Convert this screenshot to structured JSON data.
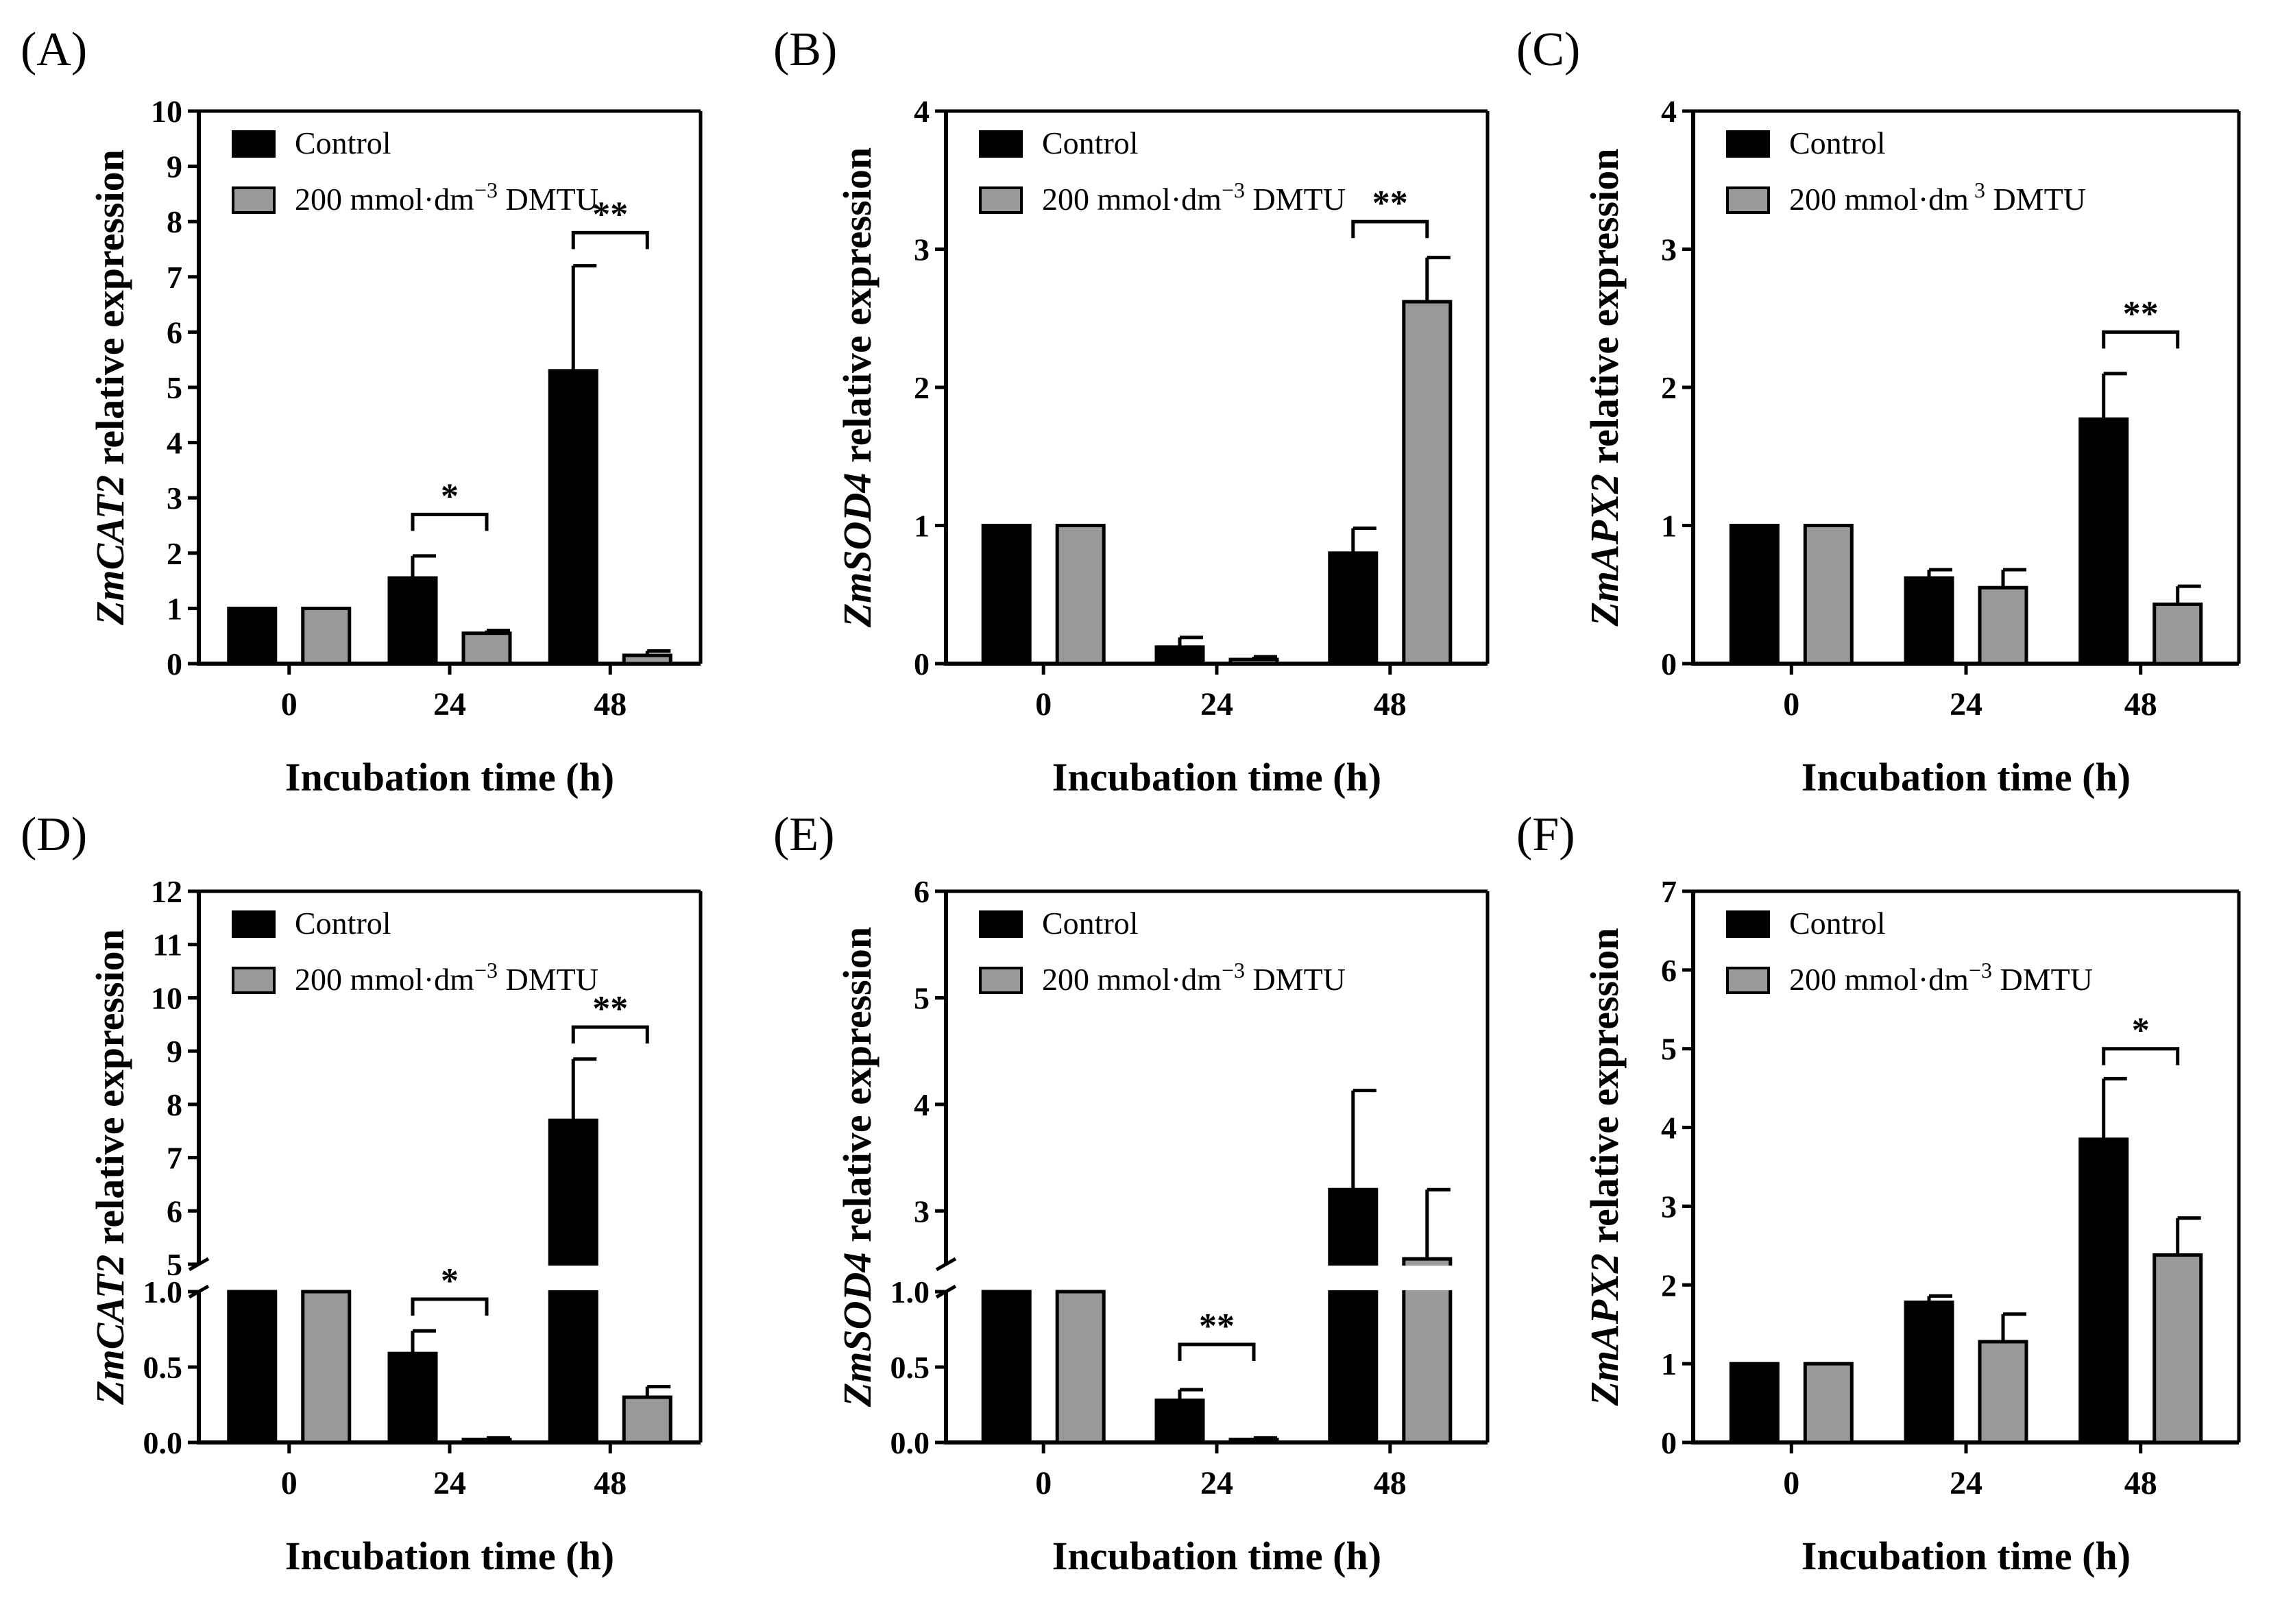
{
  "colors": {
    "control": "#000000",
    "dmtu": "#999999",
    "axis": "#000000"
  },
  "chart_data": [
    {
      "id": "A",
      "panel_label": "(A)",
      "type": "bar",
      "categories": [
        "0",
        "24",
        "48"
      ],
      "xlabel": "Incubation time (h)",
      "ylabel_gene": "ZmCAT2",
      "ylabel_rest": " relative expression",
      "legend": [
        "Control",
        "200 mmol·dm",
        "−3",
        " DMTU"
      ],
      "ylim": [
        0,
        10
      ],
      "yticks": [
        0,
        1,
        2,
        3,
        4,
        5,
        6,
        7,
        8,
        9,
        10
      ],
      "series": [
        {
          "name": "Control",
          "values": [
            1.0,
            1.55,
            5.3
          ],
          "errors": [
            0,
            0.4,
            1.9
          ]
        },
        {
          "name": "200 mmol·dm−3 DMTU",
          "values": [
            1.0,
            0.55,
            0.15
          ],
          "errors": [
            0,
            0.05,
            0.08
          ]
        }
      ],
      "significance": [
        {
          "category": 1,
          "label": "*",
          "y": 2.7
        },
        {
          "category": 2,
          "label": "**",
          "y": 7.8
        }
      ]
    },
    {
      "id": "B",
      "panel_label": "(B)",
      "type": "bar",
      "categories": [
        "0",
        "24",
        "48"
      ],
      "xlabel": "Incubation time (h)",
      "ylabel_gene": "ZmSOD4",
      "ylabel_rest": " relative expression",
      "legend": [
        "Control",
        "200 mmol·dm",
        "−3",
        " DMTU"
      ],
      "ylim": [
        0,
        4
      ],
      "yticks": [
        0,
        1,
        2,
        3,
        4
      ],
      "series": [
        {
          "name": "Control",
          "values": [
            1.0,
            0.12,
            0.8
          ],
          "errors": [
            0,
            0.07,
            0.18
          ]
        },
        {
          "name": "200 mmol·dm−3 DMTU",
          "values": [
            1.0,
            0.03,
            2.62
          ],
          "errors": [
            0,
            0.02,
            0.32
          ]
        }
      ],
      "significance": [
        {
          "category": 2,
          "label": "**",
          "y": 3.2
        }
      ]
    },
    {
      "id": "C",
      "panel_label": "(C)",
      "type": "bar",
      "categories": [
        "0",
        "24",
        "48"
      ],
      "xlabel": "Incubation time (h)",
      "ylabel_gene": "ZmAPX2",
      "ylabel_rest": " relative expression",
      "legend": [
        "Control",
        "200 mmol·dm",
        " 3",
        " DMTU"
      ],
      "ylim": [
        0,
        4
      ],
      "yticks": [
        0,
        1,
        2,
        3,
        4
      ],
      "series": [
        {
          "name": "Control",
          "values": [
            1.0,
            0.62,
            1.77
          ],
          "errors": [
            0,
            0.06,
            0.33
          ]
        },
        {
          "name": "200 mmol·dm 3 DMTU",
          "values": [
            1.0,
            0.55,
            0.43
          ],
          "errors": [
            0,
            0.13,
            0.13
          ]
        }
      ],
      "significance": [
        {
          "category": 2,
          "label": "**",
          "y": 2.4
        }
      ]
    },
    {
      "id": "D",
      "panel_label": "(D)",
      "type": "bar",
      "categories": [
        "0",
        "24",
        "48"
      ],
      "xlabel": "Incubation time (h)",
      "ylabel_gene": "ZmCAT2",
      "ylabel_rest": " relative expression",
      "legend": [
        "Control",
        "200 mmol·dm",
        "−3",
        " DMTU"
      ],
      "broken_axis": {
        "lower": [
          0,
          1.0
        ],
        "upper": [
          5,
          12
        ],
        "lower_ticks": [
          "0.0",
          "0.5",
          "1.0"
        ],
        "upper_ticks": [
          "5",
          "6",
          "7",
          "8",
          "9",
          "10",
          "11",
          "12"
        ]
      },
      "series": [
        {
          "name": "Control",
          "values": [
            1.0,
            0.59,
            7.7
          ],
          "errors": [
            0,
            0.15,
            1.15
          ]
        },
        {
          "name": "200 mmol·dm−3 DMTU",
          "values": [
            1.0,
            0.02,
            0.3
          ],
          "errors": [
            0,
            0.01,
            0.07
          ]
        }
      ],
      "significance": [
        {
          "category": 1,
          "label": "*",
          "y": 0.95
        },
        {
          "category": 2,
          "label": "**",
          "y": 9.45
        }
      ]
    },
    {
      "id": "E",
      "panel_label": "(E)",
      "type": "bar",
      "categories": [
        "0",
        "24",
        "48"
      ],
      "xlabel": "Incubation time (h)",
      "ylabel_gene": "ZmSOD4",
      "ylabel_rest": " relative expression",
      "legend": [
        "Control",
        "200 mmol·dm",
        "−3",
        " DMTU"
      ],
      "broken_axis": {
        "lower": [
          0,
          1.0
        ],
        "upper": [
          2.5,
          6
        ],
        "lower_ticks": [
          "0.0",
          "0.5",
          "1.0"
        ],
        "upper_ticks": [
          "3",
          "4",
          "5",
          "6"
        ]
      },
      "series": [
        {
          "name": "Control",
          "values": [
            1.0,
            0.28,
            3.2
          ],
          "errors": [
            0,
            0.07,
            0.93
          ]
        },
        {
          "name": "200 mmol·dm−3 DMTU",
          "values": [
            1.0,
            0.02,
            2.55
          ],
          "errors": [
            0,
            0.01,
            0.65
          ]
        }
      ],
      "significance": [
        {
          "category": 1,
          "label": "**",
          "y": 0.65
        }
      ]
    },
    {
      "id": "F",
      "panel_label": "(F)",
      "type": "bar",
      "categories": [
        "0",
        "24",
        "48"
      ],
      "xlabel": "Incubation time (h)",
      "ylabel_gene": "ZmAPX2",
      "ylabel_rest": " relative expression",
      "legend": [
        "Control",
        "200 mmol·dm",
        "−3",
        " DMTU"
      ],
      "ylim": [
        0,
        7
      ],
      "yticks": [
        0,
        1,
        2,
        3,
        4,
        5,
        6,
        7
      ],
      "series": [
        {
          "name": "Control",
          "values": [
            1.0,
            1.78,
            3.85
          ],
          "errors": [
            0,
            0.08,
            0.77
          ]
        },
        {
          "name": "200 mmol·dm−3 DMTU",
          "values": [
            1.0,
            1.28,
            2.38
          ],
          "errors": [
            0,
            0.35,
            0.47
          ]
        }
      ],
      "significance": [
        {
          "category": 2,
          "label": "*",
          "y": 5.0
        }
      ]
    }
  ]
}
